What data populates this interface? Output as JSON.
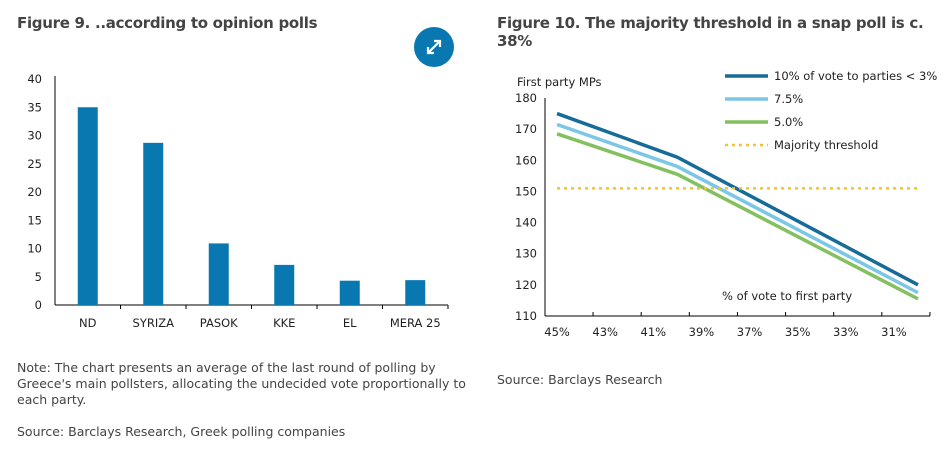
{
  "figure9": {
    "title": "Figure 9. ..according to opinion polls",
    "note": "Note: The chart presents an average of the last round of polling by Greece's main pollsters, allocating the undecided vote proportionally to each party.",
    "source": "Source: Barclays Research, Greek polling companies",
    "expand_icon": "expand-arrows-icon"
  },
  "figure10": {
    "title": "Figure 10. The majority threshold in a snap poll is c. 38%",
    "source": "Source: Barclays Research"
  },
  "chart_data": [
    {
      "type": "bar",
      "categories": [
        "ND",
        "SYRIZA",
        "PASOK",
        "KKE",
        "EL",
        "MERA 25"
      ],
      "values": [
        35,
        28.7,
        10.9,
        7.1,
        4.3,
        4.4
      ],
      "ylim": [
        0,
        40
      ],
      "yticks": [
        0,
        5,
        10,
        15,
        20,
        25,
        30,
        35,
        40
      ],
      "color": "#0a78b0",
      "grid": false
    },
    {
      "type": "line",
      "ylabel": "First party MPs",
      "xlabel": "% of vote to first party",
      "ylim": [
        110,
        180
      ],
      "yticks": [
        110,
        120,
        130,
        140,
        150,
        160,
        170,
        180
      ],
      "xticks": [
        "45%",
        "43%",
        "41%",
        "39%",
        "37%",
        "35%",
        "33%",
        "31%"
      ],
      "xtick_values": [
        45,
        43,
        41,
        39,
        37,
        35,
        33,
        31
      ],
      "xlim": [
        45.5,
        29.5
      ],
      "x_reversed": true,
      "legend_placement": "top-right",
      "grid": false,
      "series": [
        {
          "name": "10% of vote to parties < 3%",
          "x": [
            45,
            40,
            30
          ],
          "values": [
            175,
            161,
            120
          ],
          "color": "#176b99",
          "style": "solid"
        },
        {
          "name": "7.5%",
          "x": [
            45,
            40,
            30
          ],
          "values": [
            171.5,
            158,
            117.5
          ],
          "color": "#7cc6e6",
          "style": "solid"
        },
        {
          "name": "5.0%",
          "x": [
            45,
            40,
            30
          ],
          "values": [
            168.5,
            155.5,
            115.5
          ],
          "color": "#84c060",
          "style": "solid"
        },
        {
          "name": "Majority threshold",
          "x": [
            45,
            30
          ],
          "values": [
            151,
            151
          ],
          "color": "#f2c230",
          "style": "dotted"
        }
      ]
    }
  ]
}
